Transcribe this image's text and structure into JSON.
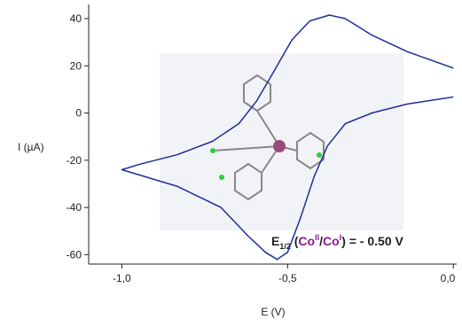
{
  "chart_data": {
    "type": "line",
    "x_label": "E (V)",
    "y_label": "I (µA)",
    "x": [
      0.0,
      -0.139,
      -0.246,
      -0.326,
      -0.38,
      -0.42,
      -0.46,
      -0.5,
      -0.532,
      -0.567,
      -0.62,
      -0.701,
      -0.834,
      -1.0,
      -0.941,
      -0.834,
      -0.727,
      -0.647,
      -0.594,
      -0.54,
      -0.487,
      -0.433,
      -0.374,
      -0.326,
      -0.246,
      -0.139,
      0.0
    ],
    "series": [
      {
        "color": "#1f2d9c",
        "values": [
          6.8,
          3.8,
          0,
          -4.5,
          -14,
          -27,
          -44,
          -59,
          -62,
          -59,
          -52,
          -40,
          -31,
          -24,
          -21.5,
          -17.7,
          -12,
          -4.5,
          5,
          18,
          31,
          39,
          41.5,
          40,
          33,
          26,
          19
        ]
      }
    ],
    "xlim": [
      -1.1,
      0.01
    ],
    "xticks": [
      {
        "value": -1.0,
        "label": "-1,0"
      },
      {
        "value": -0.5,
        "label": "-0,5"
      },
      {
        "value": 0.0,
        "label": "0,0"
      }
    ],
    "ylim": [
      -64,
      46
    ],
    "yticks": [
      -60,
      -40,
      -20,
      0,
      20,
      40
    ],
    "annotation": [
      "E",
      "1/2",
      " (",
      "Co",
      "II",
      "/",
      "Co",
      "I",
      ") = - 0.50 V"
    ]
  }
}
